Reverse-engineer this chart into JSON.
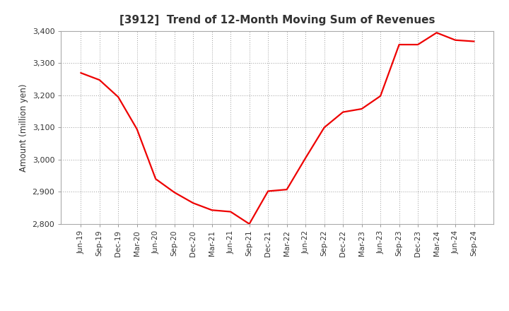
{
  "title": "[3912]  Trend of 12-Month Moving Sum of Revenues",
  "ylabel": "Amount (million yen)",
  "line_color": "#ee0000",
  "background_color": "#ffffff",
  "plot_bg_color": "#ffffff",
  "grid_color": "#999999",
  "title_color": "#333333",
  "tick_color": "#333333",
  "ylim": [
    2800,
    3400
  ],
  "yticks": [
    2800,
    2900,
    3000,
    3100,
    3200,
    3300,
    3400
  ],
  "x_labels": [
    "Jun-19",
    "Sep-19",
    "Dec-19",
    "Mar-20",
    "Jun-20",
    "Sep-20",
    "Dec-20",
    "Mar-21",
    "Jun-21",
    "Sep-21",
    "Dec-21",
    "Mar-22",
    "Jun-22",
    "Sep-22",
    "Dec-22",
    "Mar-23",
    "Jun-23",
    "Sep-23",
    "Dec-23",
    "Mar-24",
    "Jun-24",
    "Sep-24"
  ],
  "values": [
    3270,
    3248,
    3195,
    3095,
    2940,
    2898,
    2865,
    2843,
    2838,
    2800,
    2902,
    2907,
    3005,
    3100,
    3148,
    3158,
    3198,
    3358,
    3358,
    3395,
    3372,
    3368
  ]
}
